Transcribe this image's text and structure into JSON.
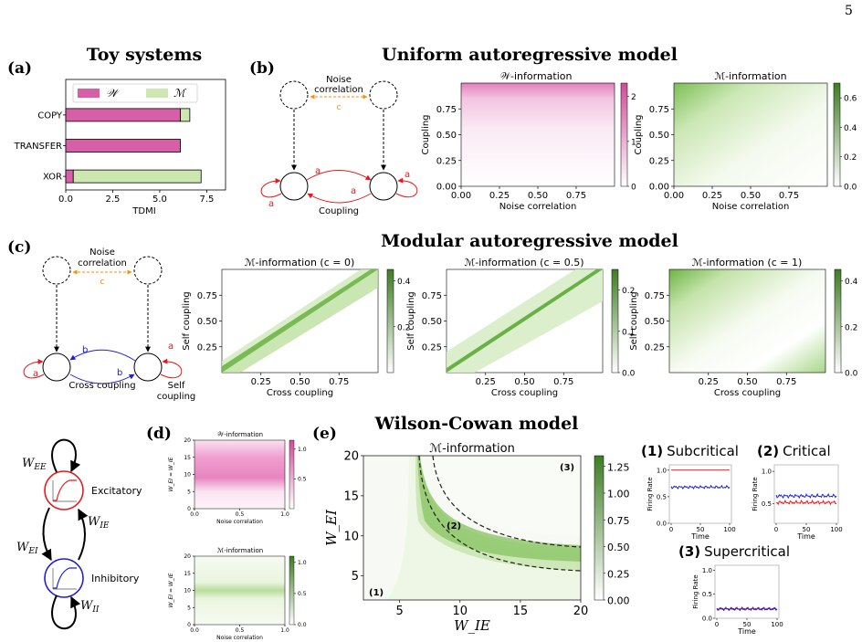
{
  "page_number": "5",
  "colors": {
    "pink": "#d75fa7",
    "green": "#8ac85a",
    "dark_green": "#4d8c2a",
    "red": "#e41a1c",
    "blue": "#2020d0",
    "orange": "#ff8c00"
  },
  "titles": {
    "toy": "Toy systems",
    "uniform": "Uniform autoregressive model",
    "modular": "Modular autoregressive model",
    "wilson": "Wilson-Cowan model"
  },
  "panel_labels": {
    "a": "(a)",
    "b": "(b)",
    "c": "(c)",
    "d": "(d)",
    "e": "(e)"
  },
  "panel_a": {
    "legend": {
      "w": "𝒲",
      "m": "ℳ"
    },
    "xlabel": "TDMI",
    "xticks": [
      "0.0",
      "2.5",
      "5.0",
      "7.5"
    ]
  },
  "chart_data": [
    {
      "type": "bar",
      "orientation": "horizontal",
      "stacked": true,
      "categories": [
        "COPY",
        "TRANSFER",
        "XOR"
      ],
      "series": [
        {
          "name": "𝒲",
          "values": [
            6.1,
            6.1,
            0.4
          ],
          "color": "#d75fa7"
        },
        {
          "name": "ℳ",
          "values": [
            0.5,
            0.0,
            6.8
          ],
          "color": "#cce8b0"
        }
      ],
      "xlabel": "TDMI",
      "xlim": [
        0,
        8.5
      ],
      "xticks": [
        0,
        2.5,
        5.0,
        7.5
      ]
    },
    {
      "type": "heatmap",
      "title": "𝒲-information",
      "xlabel": "Noise correlation",
      "ylabel": "Coupling",
      "xticks": [
        "0.00",
        "0.25",
        "0.50",
        "0.75"
      ],
      "yticks": [
        "0.00",
        "0.25",
        "0.50",
        "0.75"
      ],
      "colorbar": {
        "ticks": [
          "0",
          "1",
          "2"
        ],
        "range": [
          0,
          2.3
        ]
      }
    },
    {
      "type": "heatmap",
      "title": "ℳ-information",
      "xlabel": "Noise correlation",
      "ylabel": "Coupling",
      "xticks": [
        "0.00",
        "0.25",
        "0.50",
        "0.75"
      ],
      "yticks": [
        "0.00",
        "0.25",
        "0.50",
        "0.75"
      ],
      "colorbar": {
        "ticks": [
          "0.0",
          "0.2",
          "0.4",
          "0.6"
        ],
        "range": [
          0,
          0.7
        ]
      }
    },
    {
      "type": "heatmap",
      "title": "ℳ-information (c = 0)",
      "xlabel": "Cross coupling",
      "ylabel": "Self coupling",
      "xticks": [
        "0.25",
        "0.50",
        "0.75"
      ],
      "yticks": [
        "0.25",
        "0.50",
        "0.75"
      ],
      "colorbar": {
        "ticks": [
          "0.2",
          "0.4"
        ],
        "range": [
          0,
          0.45
        ]
      }
    },
    {
      "type": "heatmap",
      "title": "ℳ-information (c = 0.5)",
      "xlabel": "Cross coupling",
      "ylabel": "Self coupling",
      "xticks": [
        "0.25",
        "0.50",
        "0.75"
      ],
      "yticks": [
        "0.25",
        "0.50",
        "0.75"
      ],
      "colorbar": {
        "ticks": [
          "0.0",
          "0.1",
          "0.2"
        ],
        "range": [
          0,
          0.25
        ]
      }
    },
    {
      "type": "heatmap",
      "title": "ℳ-information (c = 1)",
      "xlabel": "Cross coupling",
      "ylabel": "Self coupling",
      "xticks": [
        "0.25",
        "0.50",
        "0.75"
      ],
      "yticks": [
        "0.25",
        "0.50",
        "0.75"
      ],
      "colorbar": {
        "ticks": [
          "0.0",
          "0.2",
          "0.4"
        ],
        "range": [
          0,
          0.45
        ]
      }
    },
    {
      "type": "heatmap",
      "title": "𝒲-information",
      "xlabel": "Noise correlation",
      "ylabel": "W_EI = W_IE",
      "xticks": [
        "0.0",
        "0.5",
        "1.0"
      ],
      "yticks": [
        "0",
        "5",
        "10",
        "15",
        "20"
      ],
      "colorbar": {
        "ticks": [
          "0.5",
          "1.0"
        ],
        "range": [
          0,
          1.15
        ]
      }
    },
    {
      "type": "heatmap",
      "title": "ℳ-information",
      "xlabel": "Noise correlation",
      "ylabel": "W_EI = W_IE",
      "xticks": [
        "0.0",
        "0.5",
        "1.0"
      ],
      "yticks": [
        "0",
        "5",
        "10",
        "15",
        "20"
      ],
      "colorbar": {
        "ticks": [
          "0.0",
          "0.5",
          "1.0"
        ],
        "range": [
          0,
          1.1
        ]
      }
    },
    {
      "type": "heatmap",
      "title": "ℳ-information",
      "xlabel": "W_IE",
      "ylabel": "W_EI",
      "xticks": [
        "5",
        "10",
        "15",
        "20"
      ],
      "yticks": [
        "5",
        "10",
        "15",
        "20"
      ],
      "xlim": [
        2,
        20
      ],
      "ylim": [
        2,
        20
      ],
      "colorbar": {
        "ticks": [
          "0.00",
          "0.25",
          "0.50",
          "0.75",
          "1.00",
          "1.25"
        ],
        "range": [
          0,
          1.35
        ]
      },
      "annotations": [
        "(1)",
        "(2)",
        "(3)"
      ]
    },
    {
      "type": "line",
      "title": "(1) Subcritical",
      "xlabel": "Time",
      "ylabel": "Firing Rate",
      "xticks": [
        "0",
        "50",
        "100"
      ],
      "yticks": [
        "0.0",
        "0.5",
        "1.0"
      ],
      "ylim": [
        0,
        1.1
      ],
      "series": [
        {
          "values_level": 1.0,
          "color": "#e41a1c"
        },
        {
          "values_level": 0.68,
          "color": "#2020d0"
        }
      ]
    },
    {
      "type": "line",
      "title": "(2) Critical",
      "xlabel": "Time",
      "ylabel": "Firing Rate",
      "xticks": [
        "0",
        "50",
        "100"
      ],
      "yticks": [
        "0.5",
        "1.0"
      ],
      "ylim": [
        0.2,
        1.1
      ],
      "series": [
        {
          "values_level": 0.52,
          "color": "#e41a1c"
        },
        {
          "values_level": 0.62,
          "color": "#2020d0"
        }
      ]
    },
    {
      "type": "line",
      "title": "(3) Supercritical",
      "xlabel": "Time",
      "ylabel": "Firing Rate",
      "xticks": [
        "0",
        "50",
        "100"
      ],
      "yticks": [
        "0.0",
        "0.5",
        "1.0"
      ],
      "ylim": [
        0,
        1.1
      ],
      "series": [
        {
          "values_level": 0.2,
          "color": "#e41a1c"
        },
        {
          "values_level": 0.19,
          "color": "#2020d0"
        }
      ]
    }
  ],
  "diagram_b": {
    "noise_label_1": "Noise",
    "noise_label_2": "correlation",
    "c": "c",
    "a": "a",
    "coupling": "Coupling"
  },
  "diagram_c": {
    "noise_label_1": "Noise",
    "noise_label_2": "correlation",
    "c": "c",
    "a": "a",
    "b": "b",
    "cross": "Cross coupling",
    "self_1": "Self",
    "self_2": "coupling"
  },
  "wc_diagram": {
    "wee": "W",
    "wee_sub": "EE",
    "wie": "W",
    "wie_sub": "IE",
    "wei": "W",
    "wei_sub": "EI",
    "wii": "W",
    "wii_sub": "II",
    "exc": "Excitatory",
    "inh": "Inhibitory"
  },
  "rates_titles": {
    "n1": "(1)",
    "t1": "Subcritical",
    "n2": "(2)",
    "t2": "Critical",
    "n3": "(3)",
    "t3": "Supercritical"
  }
}
